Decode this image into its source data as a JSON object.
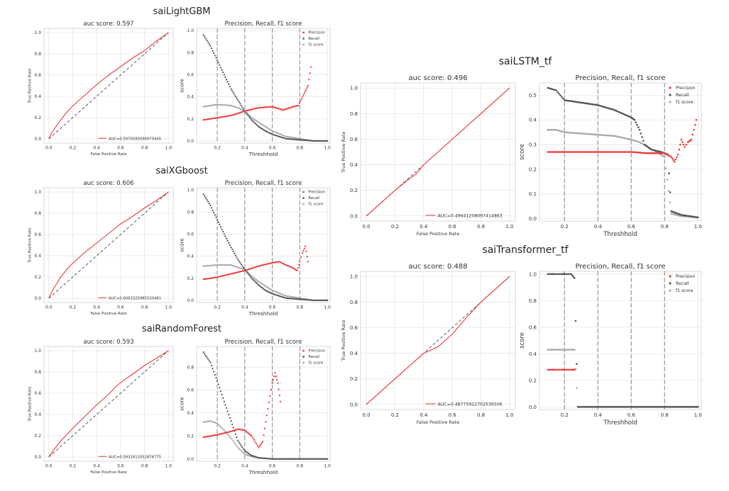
{
  "colors": {
    "precision": "#ee3b3b",
    "recall": "#555555",
    "f1": "#a9a9a9",
    "roc": "#ee3b3b",
    "diagonal": "#555577",
    "threshold_line": "#999999"
  },
  "chart_data": [
    {
      "model": "saiLightGBM",
      "roc": {
        "type": "line",
        "title": "auc score: 0.597",
        "xlabel": "False Positive Rate",
        "ylabel": "True Positive Rate",
        "xlim": [
          0,
          1
        ],
        "ylim": [
          0,
          1
        ],
        "xticks": [
          "0.0",
          "0.2",
          "0.4",
          "0.6",
          "0.8",
          "1.0"
        ],
        "yticks": [
          "0.0",
          "0.2",
          "0.4",
          "0.6",
          "0.8",
          "1.0"
        ],
        "legend": "AUC=0.5970583096970445",
        "legend_position": "lower-right",
        "grid": true,
        "x": [
          0,
          0.02,
          0.05,
          0.1,
          0.15,
          0.2,
          0.3,
          0.4,
          0.5,
          0.6,
          0.7,
          0.8,
          0.9,
          1.0
        ],
        "y": [
          0,
          0.05,
          0.1,
          0.18,
          0.25,
          0.31,
          0.41,
          0.51,
          0.6,
          0.68,
          0.76,
          0.83,
          0.92,
          1.0
        ]
      },
      "prf": {
        "type": "scatter",
        "title": "Precision, Recall, f1 score",
        "xlabel": "Threshhold",
        "ylabel": "score",
        "xlim": [
          0.05,
          1.02
        ],
        "ylim": [
          -0.02,
          1.02
        ],
        "xticks": [
          "0.2",
          "0.4",
          "0.6",
          "0.8",
          "1.0"
        ],
        "yticks": [
          "0.0",
          "0.2",
          "0.4",
          "0.6",
          "0.8",
          "1.0"
        ],
        "vlines": [
          0.2,
          0.4,
          0.6,
          0.8
        ],
        "legend_position": "top-right",
        "grid": true,
        "series": [
          {
            "name": "Precision",
            "x": [
              0.1,
              0.2,
              0.3,
              0.4,
              0.5,
              0.6,
              0.68,
              0.75,
              0.79,
              0.82,
              0.84,
              0.86,
              0.88
            ],
            "y": [
              0.19,
              0.21,
              0.23,
              0.27,
              0.3,
              0.31,
              0.28,
              0.31,
              0.32,
              0.4,
              0.45,
              0.5,
              0.67
            ]
          },
          {
            "name": "Recall",
            "x": [
              0.1,
              0.15,
              0.2,
              0.25,
              0.3,
              0.35,
              0.4,
              0.45,
              0.5,
              0.55,
              0.6,
              0.65,
              0.7,
              0.8,
              0.9,
              1.0
            ],
            "y": [
              0.96,
              0.86,
              0.73,
              0.6,
              0.47,
              0.37,
              0.27,
              0.19,
              0.13,
              0.09,
              0.06,
              0.04,
              0.02,
              0.01,
              0.0,
              0.0
            ]
          },
          {
            "name": "f1 score",
            "x": [
              0.1,
              0.2,
              0.3,
              0.35,
              0.4,
              0.45,
              0.5,
              0.55,
              0.6,
              0.7,
              0.8,
              0.9,
              1.0
            ],
            "y": [
              0.31,
              0.33,
              0.32,
              0.3,
              0.27,
              0.21,
              0.17,
              0.13,
              0.09,
              0.04,
              0.02,
              0.0,
              0.0
            ]
          }
        ]
      }
    },
    {
      "model": "saiXGboost",
      "roc": {
        "type": "line",
        "title": "auc score: 0.606",
        "xlabel": "False Positive Rate",
        "ylabel": "True Positive Rate",
        "xlim": [
          0,
          1
        ],
        "ylim": [
          0,
          1
        ],
        "xticks": [
          "0.0",
          "0.2",
          "0.4",
          "0.6",
          "0.8",
          "1.0"
        ],
        "yticks": [
          "0.0",
          "0.2",
          "0.4",
          "0.6",
          "0.8",
          "1.0"
        ],
        "legend": "AUC=0.6063325985530481",
        "legend_position": "lower-right",
        "grid": true,
        "x": [
          0,
          0.02,
          0.05,
          0.1,
          0.15,
          0.2,
          0.3,
          0.4,
          0.5,
          0.6,
          0.7,
          0.8,
          0.9,
          1.0
        ],
        "y": [
          0,
          0.05,
          0.11,
          0.2,
          0.27,
          0.33,
          0.43,
          0.52,
          0.61,
          0.7,
          0.77,
          0.85,
          0.92,
          1.0
        ]
      },
      "prf": {
        "type": "scatter",
        "title": "Precision, Recall, f1 score",
        "xlabel": "Threshhold",
        "ylabel": "score",
        "xlim": [
          0.05,
          1.02
        ],
        "ylim": [
          -0.02,
          1.02
        ],
        "xticks": [
          "0.2",
          "0.4",
          "0.6",
          "0.8",
          "1.0"
        ],
        "yticks": [
          "0.0",
          "0.2",
          "0.4",
          "0.6",
          "0.8",
          "1.0"
        ],
        "vlines": [
          0.2,
          0.4,
          0.6,
          0.8
        ],
        "legend_position": "top-right",
        "grid": true,
        "series": [
          {
            "name": "Precision",
            "x": [
              0.1,
              0.2,
              0.3,
              0.4,
              0.5,
              0.6,
              0.65,
              0.7,
              0.74,
              0.78,
              0.8,
              0.82,
              0.84,
              0.86
            ],
            "y": [
              0.19,
              0.21,
              0.24,
              0.27,
              0.31,
              0.34,
              0.35,
              0.32,
              0.3,
              0.27,
              0.35,
              0.43,
              0.49,
              0.35
            ]
          },
          {
            "name": "Recall",
            "x": [
              0.1,
              0.15,
              0.2,
              0.25,
              0.3,
              0.35,
              0.4,
              0.45,
              0.5,
              0.55,
              0.6,
              0.65,
              0.7,
              0.8,
              0.9,
              1.0
            ],
            "y": [
              0.96,
              0.86,
              0.73,
              0.6,
              0.48,
              0.37,
              0.28,
              0.2,
              0.14,
              0.09,
              0.06,
              0.04,
              0.02,
              0.01,
              0.0,
              0.0
            ]
          },
          {
            "name": "f1 score",
            "x": [
              0.1,
              0.2,
              0.3,
              0.35,
              0.4,
              0.45,
              0.5,
              0.55,
              0.6,
              0.7,
              0.8,
              0.9,
              1.0
            ],
            "y": [
              0.31,
              0.32,
              0.32,
              0.3,
              0.28,
              0.22,
              0.17,
              0.13,
              0.09,
              0.04,
              0.02,
              0.0,
              0.0
            ]
          }
        ]
      }
    },
    {
      "model": "saiRandomForest",
      "roc": {
        "type": "line",
        "title": "auc score: 0.593",
        "xlabel": "False Positive Rate",
        "ylabel": "True Positive Rate",
        "xlim": [
          0,
          1
        ],
        "ylim": [
          0,
          1
        ],
        "xticks": [
          "0.0",
          "0.2",
          "0.4",
          "0.6",
          "0.8",
          "1.0"
        ],
        "yticks": [
          "0.0",
          "0.2",
          "0.4",
          "0.6",
          "0.8",
          "1.0"
        ],
        "legend": "AUC=0.5931611052876775",
        "legend_position": "lower-right",
        "grid": true,
        "x": [
          0,
          0.05,
          0.1,
          0.2,
          0.3,
          0.4,
          0.5,
          0.55,
          0.6,
          0.7,
          0.8,
          0.9,
          1.0
        ],
        "y": [
          0,
          0.08,
          0.15,
          0.27,
          0.38,
          0.49,
          0.59,
          0.65,
          0.7,
          0.78,
          0.86,
          0.93,
          1.0
        ]
      },
      "prf": {
        "type": "scatter",
        "title": "Precision, Recall, f1 score",
        "xlabel": "Threshhold",
        "ylabel": "score",
        "xlim": [
          0.05,
          1.02
        ],
        "ylim": [
          -0.02,
          0.98
        ],
        "xticks": [
          "0.2",
          "0.4",
          "0.6",
          "0.8",
          "1.0"
        ],
        "yticks": [
          "0.0",
          "0.2",
          "0.4",
          "0.6",
          "0.8"
        ],
        "vlines": [
          0.2,
          0.4,
          0.6,
          0.8
        ],
        "legend_position": "top-right",
        "grid": true,
        "series": [
          {
            "name": "Precision",
            "x": [
              0.1,
              0.2,
              0.3,
              0.35,
              0.4,
              0.45,
              0.5,
              0.53,
              0.56,
              0.6,
              0.62,
              0.64,
              0.66
            ],
            "y": [
              0.19,
              0.21,
              0.24,
              0.26,
              0.25,
              0.2,
              0.1,
              0.15,
              0.38,
              0.66,
              0.75,
              0.66,
              0.5
            ]
          },
          {
            "name": "Recall",
            "x": [
              0.1,
              0.15,
              0.2,
              0.25,
              0.3,
              0.35,
              0.4,
              0.45,
              0.5,
              0.6,
              0.7,
              0.8,
              0.9,
              1.0
            ],
            "y": [
              0.93,
              0.84,
              0.68,
              0.5,
              0.33,
              0.16,
              0.07,
              0.03,
              0.01,
              0.0,
              0.0,
              0.0,
              0.0,
              0.0
            ]
          },
          {
            "name": "f1 score",
            "x": [
              0.1,
              0.15,
              0.2,
              0.25,
              0.3,
              0.35,
              0.4,
              0.45,
              0.5,
              0.6,
              0.7,
              0.8,
              0.9,
              1.0
            ],
            "y": [
              0.32,
              0.33,
              0.31,
              0.25,
              0.18,
              0.1,
              0.04,
              0.02,
              0.01,
              0.0,
              0.0,
              0.0,
              0.0,
              0.0
            ]
          }
        ]
      }
    },
    {
      "model": "saiLSTM_tf",
      "roc": {
        "type": "line",
        "title": "auc score: 0.496",
        "xlabel": "False Positive Rate",
        "ylabel": "True Positive Rate",
        "xlim": [
          0,
          1
        ],
        "ylim": [
          0,
          1
        ],
        "xticks": [
          "0.0",
          "0.2",
          "0.4",
          "0.6",
          "0.8",
          "1.0"
        ],
        "yticks": [
          "0.0",
          "0.2",
          "0.4",
          "0.6",
          "0.8",
          "1.0"
        ],
        "legend": "AUC=0.49641208097414863",
        "legend_position": "lower-right",
        "grid": true,
        "x": [
          0,
          0.1,
          0.2,
          0.3,
          0.35,
          0.4,
          0.5,
          0.6,
          0.7,
          0.8,
          0.9,
          1.0
        ],
        "y": [
          0,
          0.1,
          0.2,
          0.29,
          0.33,
          0.4,
          0.5,
          0.6,
          0.7,
          0.8,
          0.9,
          1.0
        ]
      },
      "prf": {
        "type": "scatter",
        "title": "Precision, Recall, f1 score",
        "xlabel": "Threshhold",
        "ylabel": "score",
        "xlim": [
          0.05,
          1.02
        ],
        "ylim": [
          -0.01,
          0.55
        ],
        "xticks": [
          "0.2",
          "0.4",
          "0.6",
          "0.8",
          "1.0"
        ],
        "yticks": [
          "0.0",
          "0.1",
          "0.2",
          "0.3",
          "0.4",
          "0.5"
        ],
        "vlines": [
          0.2,
          0.4,
          0.6,
          0.8
        ],
        "legend_position": "top-right",
        "grid": true,
        "series": [
          {
            "name": "Precision",
            "x": [
              0.1,
              0.2,
              0.3,
              0.4,
              0.5,
              0.6,
              0.7,
              0.8,
              0.84,
              0.86,
              0.88,
              0.9,
              0.92,
              0.94,
              0.96,
              0.99
            ],
            "y": [
              0.27,
              0.27,
              0.27,
              0.27,
              0.27,
              0.27,
              0.265,
              0.265,
              0.25,
              0.23,
              0.26,
              0.32,
              0.29,
              0.31,
              0.32,
              0.4
            ]
          },
          {
            "name": "Recall",
            "x": [
              0.1,
              0.15,
              0.2,
              0.3,
              0.4,
              0.5,
              0.6,
              0.62,
              0.65,
              0.68,
              0.72,
              0.78,
              0.82,
              0.84,
              0.9,
              1.0
            ],
            "y": [
              0.53,
              0.52,
              0.48,
              0.47,
              0.46,
              0.44,
              0.41,
              0.4,
              0.36,
              0.3,
              0.28,
              0.27,
              0.26,
              0.03,
              0.015,
              0.005
            ]
          },
          {
            "name": "f1 score",
            "x": [
              0.1,
              0.15,
              0.2,
              0.3,
              0.4,
              0.5,
              0.6,
              0.65,
              0.7,
              0.75,
              0.8,
              0.84,
              0.9,
              1.0
            ],
            "y": [
              0.36,
              0.36,
              0.35,
              0.345,
              0.34,
              0.335,
              0.32,
              0.31,
              0.29,
              0.27,
              0.25,
              0.02,
              0.01,
              0.005
            ]
          }
        ]
      }
    },
    {
      "model": "saiTransformer_tf",
      "roc": {
        "type": "line",
        "title": "auc score: 0.488",
        "xlabel": "False Positive Rate",
        "ylabel": "True Positive Rate",
        "xlim": [
          0,
          1
        ],
        "ylim": [
          0,
          1
        ],
        "xticks": [
          "0.0",
          "0.2",
          "0.4",
          "0.6",
          "0.8",
          "1.0"
        ],
        "yticks": [
          "0.0",
          "0.2",
          "0.4",
          "0.6",
          "0.8",
          "1.0"
        ],
        "legend": "AUC=0.48775922702536506",
        "legend_position": "lower-right",
        "grid": true,
        "x": [
          0,
          0.1,
          0.2,
          0.3,
          0.4,
          0.5,
          0.6,
          0.7,
          0.8,
          0.9,
          1.0
        ],
        "y": [
          0,
          0.1,
          0.2,
          0.3,
          0.4,
          0.45,
          0.55,
          0.68,
          0.8,
          0.9,
          1.0
        ]
      },
      "prf": {
        "type": "scatter",
        "title": "Precision, Recall, f1 score",
        "xlabel": "Threshhold",
        "ylabel": "score",
        "xlim": [
          0.05,
          1.02
        ],
        "ylim": [
          -0.02,
          1.02
        ],
        "xticks": [
          "0.2",
          "0.4",
          "0.6",
          "0.8",
          "1.0"
        ],
        "yticks": [
          "0.0",
          "0.2",
          "0.4",
          "0.6",
          "0.8",
          "1.0"
        ],
        "vlines": [
          0.2,
          0.4,
          0.6,
          0.8
        ],
        "legend_position": "top-right",
        "grid": true,
        "series": [
          {
            "name": "Precision",
            "x": [
              0.1,
              0.12,
              0.14,
              0.16,
              0.18,
              0.2,
              0.22,
              0.24,
              0.26
            ],
            "y": [
              0.28,
              0.28,
              0.28,
              0.28,
              0.28,
              0.28,
              0.28,
              0.28,
              0.28
            ]
          },
          {
            "name": "Recall",
            "x": [
              0.1,
              0.12,
              0.14,
              0.16,
              0.18,
              0.2,
              0.22,
              0.24,
              0.26,
              0.28,
              0.4,
              0.6,
              0.8,
              1.0
            ],
            "y": [
              1.0,
              1.0,
              1.0,
              1.0,
              1.0,
              1.0,
              1.0,
              1.0,
              0.97,
              0.0,
              0.0,
              0.0,
              0.0,
              0.0
            ]
          },
          {
            "name": "f1 score",
            "x": [
              0.1,
              0.12,
              0.14,
              0.16,
              0.18,
              0.2,
              0.22,
              0.24,
              0.26,
              0.28,
              0.4,
              0.6,
              0.8,
              1.0
            ],
            "y": [
              0.43,
              0.43,
              0.43,
              0.43,
              0.43,
              0.43,
              0.43,
              0.43,
              0.43,
              0.0,
              0.0,
              0.0,
              0.0,
              0.0
            ]
          }
        ]
      }
    }
  ]
}
